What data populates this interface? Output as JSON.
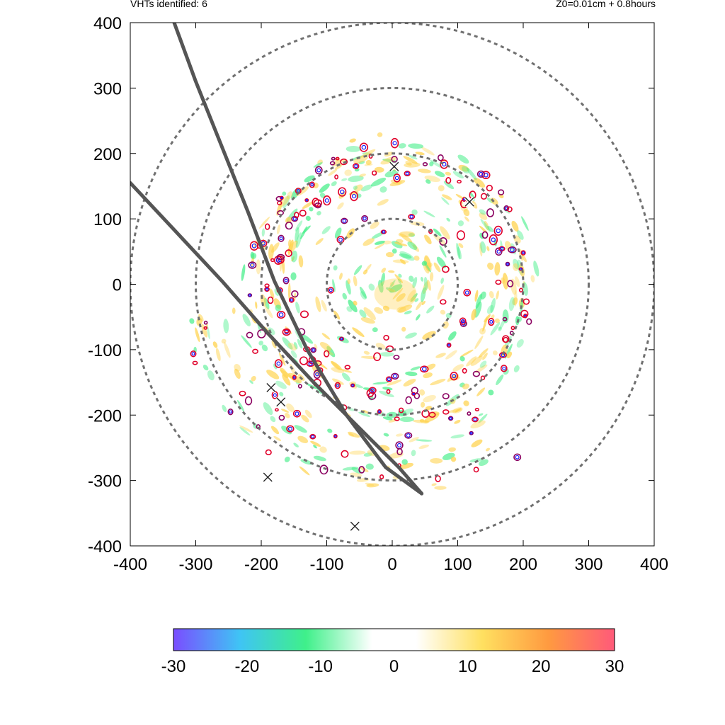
{
  "header": {
    "left_text": "VHTs identified: 6",
    "right_text": "Z0=0.01cm  + 0.8hours"
  },
  "chart_data": {
    "type": "scatter",
    "title": "",
    "xlabel": "",
    "ylabel": "",
    "xlim": [
      -400,
      400
    ],
    "ylim": [
      -400,
      400
    ],
    "x_ticks": [
      -400,
      -300,
      -200,
      -100,
      0,
      100,
      200,
      300,
      400
    ],
    "y_ticks": [
      -400,
      -300,
      -200,
      -100,
      0,
      100,
      200,
      300,
      400
    ],
    "grid": false,
    "range_rings": [
      100,
      200,
      300,
      400
    ],
    "vht_markers": [
      {
        "x": 3,
        "y": 180
      },
      {
        "x": 118,
        "y": 126
      },
      {
        "x": -185,
        "y": -158
      },
      {
        "x": -170,
        "y": -180
      },
      {
        "x": -190,
        "y": -295
      },
      {
        "x": -57,
        "y": -370
      }
    ],
    "track_lines": [
      {
        "points": [
          [
            -333,
            400
          ],
          [
            -300,
            310
          ],
          [
            -260,
            210
          ],
          [
            -220,
            110
          ],
          [
            -180,
            5
          ],
          [
            -130,
            -100
          ],
          [
            -70,
            -200
          ],
          [
            -10,
            -280
          ],
          [
            45,
            -320
          ]
        ]
      },
      {
        "points": [
          [
            -400,
            155
          ],
          [
            -330,
            80
          ],
          [
            -260,
            5
          ],
          [
            -190,
            -75
          ],
          [
            -120,
            -150
          ],
          [
            -40,
            -230
          ],
          [
            10,
            -280
          ],
          [
            45,
            -320
          ]
        ]
      }
    ],
    "colorbar": {
      "min": -30,
      "max": 30,
      "ticks": [
        -30,
        -20,
        -10,
        0,
        10,
        20,
        30
      ],
      "colors": [
        "#7a4dff",
        "#3fc4f5",
        "#3ff08a",
        "#ffffff",
        "#ffffff",
        "#ffe060",
        "#ff9a40",
        "#ff5a7a"
      ]
    },
    "colors": {
      "contour_red": "#e0002a",
      "contour_blue": "#1a1aff",
      "contour_purple": "#8a0060",
      "track": "#555555",
      "ring": "#707070",
      "warm": "#ffd24a",
      "cool": "#44ee88"
    }
  }
}
